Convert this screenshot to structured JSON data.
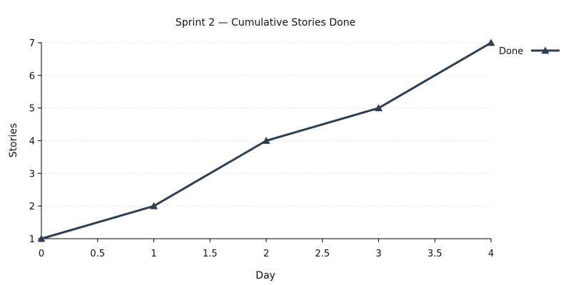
{
  "chart_data": {
    "type": "line",
    "title": "Sprint 2 — Cumulative Stories Done",
    "xlabel": "Day",
    "ylabel": "Stories",
    "xlim": [
      0,
      4
    ],
    "ylim": [
      1,
      7
    ],
    "x_ticks": [
      0,
      0.5,
      1,
      1.5,
      2,
      2.5,
      3,
      3.5,
      4
    ],
    "y_ticks": [
      1,
      2,
      3,
      4,
      5,
      6,
      7
    ],
    "grid": "horizontal-dotted",
    "legend": "top-right-outside",
    "series": [
      {
        "name": "Done",
        "color": "#2c3e50",
        "marker": "triangle",
        "x": [
          0,
          1,
          2,
          3,
          4
        ],
        "y": [
          1,
          2,
          4,
          5,
          7
        ]
      }
    ]
  }
}
